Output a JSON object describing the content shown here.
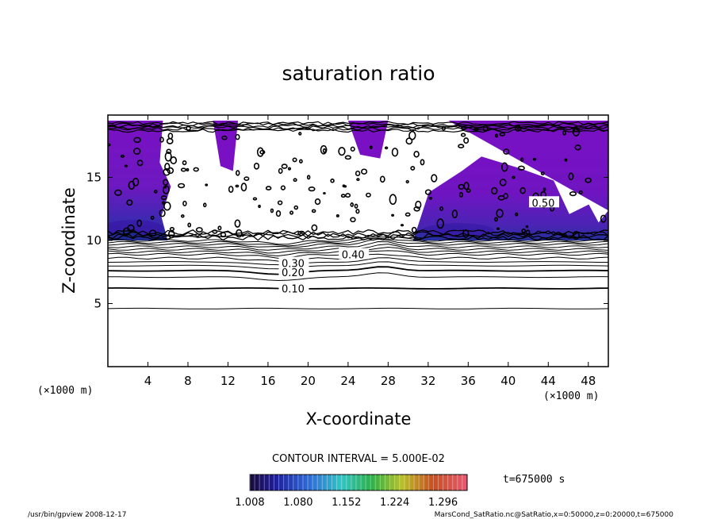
{
  "chart_data": {
    "type": "heatmap",
    "title": "saturation ratio",
    "xlabel": "X-coordinate",
    "ylabel": "Z-coordinate",
    "x_unit_left": "(×1000 m)",
    "x_unit_right": "(×1000 m)",
    "xlim": [
      0,
      50
    ],
    "ylim": [
      0,
      20
    ],
    "xticks": [
      "4",
      "8",
      "12",
      "16",
      "20",
      "24",
      "28",
      "32",
      "36",
      "40",
      "44",
      "48"
    ],
    "yticks": [
      "5",
      "10",
      "15"
    ],
    "contour_interval_label": "CONTOUR INTERVAL = 5.000E-02",
    "contour_labels": [
      "0.10",
      "0.20",
      "0.30",
      "0.40",
      "0.50"
    ],
    "colorbar": {
      "tick_labels": [
        "1.008",
        "1.080",
        "1.152",
        "1.224",
        "1.296"
      ],
      "range": [
        1.008,
        1.332
      ]
    },
    "shaded_regions": [
      {
        "x": [
          0,
          5.5
        ],
        "z": [
          10,
          19.5
        ],
        "value": "> 1.008"
      },
      {
        "x": [
          10.5,
          13
        ],
        "z": [
          15.5,
          19.5
        ],
        "value": "> 1.008"
      },
      {
        "x": [
          24,
          28
        ],
        "z": [
          16.5,
          19.5
        ],
        "value": "> 1.008"
      },
      {
        "x": [
          30.5,
          50
        ],
        "z": [
          10,
          19.5
        ],
        "value": "> 1.008"
      }
    ],
    "time_label": "t=675000 s"
  },
  "footer": {
    "left": "/usr/bin/gpview   2008-12-17",
    "right": "MarsCond_SatRatio.nc@SatRatio,x=0:50000,z=0:20000,t=675000"
  },
  "colors": {
    "shade_main": "#7a10c4",
    "shade_deep": "#3a1aa8",
    "shade_core": "#1c2a8c",
    "contour": "#000000"
  }
}
